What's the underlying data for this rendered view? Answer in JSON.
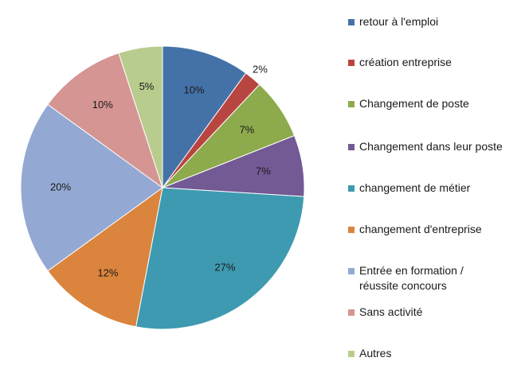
{
  "chart_data": {
    "type": "pie",
    "start_angle_deg": 0,
    "direction": "clockwise",
    "legend_position": "right",
    "slices": [
      {
        "label": "retour à l'emploi",
        "value": 10,
        "display": "10%",
        "color": "#4472A8"
      },
      {
        "label": "création entreprise",
        "value": 2,
        "display": "2%",
        "color": "#B94541"
      },
      {
        "label": "Changement de poste",
        "value": 7,
        "display": "7%",
        "color": "#8DAA4C"
      },
      {
        "label": "Changement dans leur poste",
        "value": 7,
        "display": "7%",
        "color": "#735A94"
      },
      {
        "label": "changement de métier",
        "value": 27,
        "display": "27%",
        "color": "#3E9AB0"
      },
      {
        "label": "changement d'entreprise",
        "value": 12,
        "display": "12%",
        "color": "#DB843D"
      },
      {
        "label": "Entrée en formation /\nréussite concours",
        "value": 20,
        "display": "20%",
        "color": "#93A9D3"
      },
      {
        "label": "Sans activité",
        "value": 10,
        "display": "10%",
        "color": "#D59593"
      },
      {
        "label": "Autres",
        "value": 5,
        "display": "5%",
        "color": "#B8CC8E"
      }
    ]
  }
}
